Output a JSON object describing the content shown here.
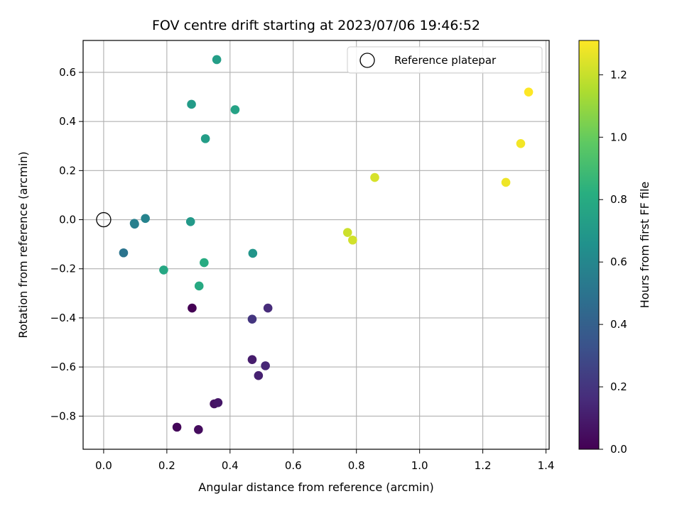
{
  "chart_data": {
    "type": "scatter",
    "title": "FOV centre drift starting at 2023/07/06 19:46:52",
    "xlabel": "Angular distance from reference (arcmin)",
    "ylabel": "Rotation from reference (arcmin)",
    "xlim": [
      -0.065,
      1.41
    ],
    "ylim": [
      -0.935,
      0.73
    ],
    "grid": true,
    "xticks": [
      0.0,
      0.2,
      0.4,
      0.6,
      0.8,
      1.0,
      1.2,
      1.4
    ],
    "xtick_labels": [
      "0.0",
      "0.2",
      "0.4",
      "0.6",
      "0.8",
      "1.0",
      "1.2",
      "1.4"
    ],
    "yticks": [
      -0.8,
      -0.6,
      -0.4,
      -0.2,
      0.0,
      0.2,
      0.4,
      0.6
    ],
    "ytick_labels": [
      "−0.8",
      "−0.6",
      "−0.4",
      "−0.2",
      "0.0",
      "0.2",
      "0.4",
      "0.6"
    ],
    "legend": {
      "placement": "upper-right",
      "entries": [
        {
          "label": "Reference platepar",
          "marker": "open-circle",
          "x": 0.0,
          "y": 0.0
        }
      ]
    },
    "colorbar": {
      "label": "Hours from first FF file",
      "colormap": "viridis",
      "range": [
        0.0,
        1.31
      ],
      "ticks": [
        0.0,
        0.2,
        0.4,
        0.6,
        0.8,
        1.0,
        1.2
      ],
      "tick_labels": [
        "0.0",
        "0.2",
        "0.4",
        "0.6",
        "0.8",
        "1.0",
        "1.2"
      ]
    },
    "points": [
      {
        "x": 0.28,
        "y": -0.36,
        "hours": 0.0
      },
      {
        "x": 0.232,
        "y": -0.845,
        "hours": 0.02
      },
      {
        "x": 0.3,
        "y": -0.855,
        "hours": 0.04
      },
      {
        "x": 0.35,
        "y": -0.75,
        "hours": 0.06
      },
      {
        "x": 0.362,
        "y": -0.745,
        "hours": 0.08
      },
      {
        "x": 0.47,
        "y": -0.57,
        "hours": 0.1
      },
      {
        "x": 0.49,
        "y": -0.635,
        "hours": 0.12
      },
      {
        "x": 0.512,
        "y": -0.595,
        "hours": 0.14
      },
      {
        "x": 0.52,
        "y": -0.36,
        "hours": 0.16
      },
      {
        "x": 0.47,
        "y": -0.405,
        "hours": 0.2
      },
      {
        "x": 0.063,
        "y": -0.135,
        "hours": 0.5
      },
      {
        "x": 0.098,
        "y": -0.018,
        "hours": 0.55
      },
      {
        "x": 0.097,
        "y": -0.015,
        "hours": 0.56
      },
      {
        "x": 0.132,
        "y": 0.005,
        "hours": 0.58
      },
      {
        "x": 0.472,
        "y": -0.137,
        "hours": 0.68
      },
      {
        "x": 0.275,
        "y": -0.008,
        "hours": 0.7
      },
      {
        "x": 0.278,
        "y": 0.47,
        "hours": 0.71
      },
      {
        "x": 0.322,
        "y": 0.33,
        "hours": 0.72
      },
      {
        "x": 0.358,
        "y": 0.652,
        "hours": 0.73
      },
      {
        "x": 0.416,
        "y": 0.448,
        "hours": 0.75
      },
      {
        "x": 0.19,
        "y": -0.205,
        "hours": 0.78
      },
      {
        "x": 0.302,
        "y": -0.27,
        "hours": 0.79
      },
      {
        "x": 0.318,
        "y": -0.175,
        "hours": 0.8
      },
      {
        "x": 0.772,
        "y": -0.052,
        "hours": 1.21
      },
      {
        "x": 0.788,
        "y": -0.083,
        "hours": 1.22
      },
      {
        "x": 0.858,
        "y": 0.172,
        "hours": 1.23
      },
      {
        "x": 1.273,
        "y": 0.152,
        "hours": 1.28
      },
      {
        "x": 1.32,
        "y": 0.31,
        "hours": 1.29
      },
      {
        "x": 1.345,
        "y": 0.52,
        "hours": 1.31
      }
    ]
  }
}
